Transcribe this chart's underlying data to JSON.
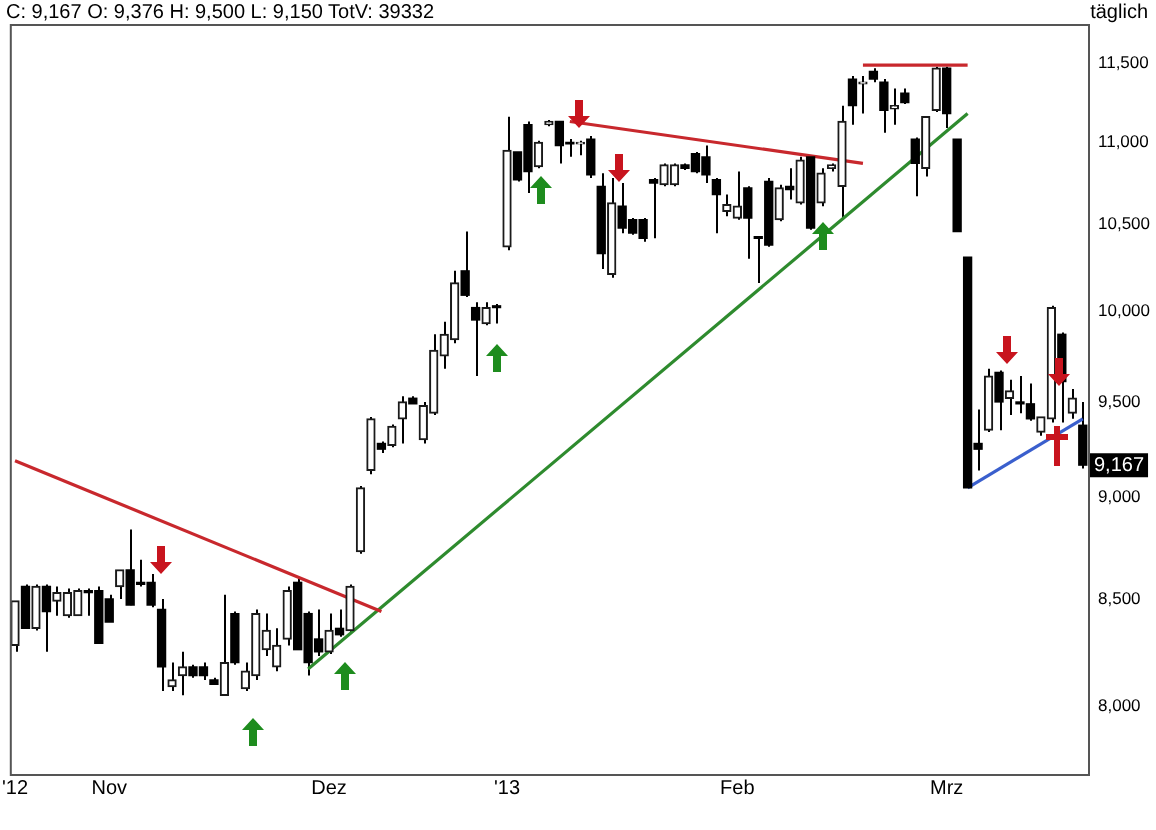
{
  "chart_data": {
    "type": "candlestick",
    "title": "C: 9,167 O: 9,376 H: 9,500 L: 9,150 TotV: 39332",
    "subtitle": "täglich",
    "categories": [
      "'12",
      null,
      null,
      null,
      null,
      null,
      null,
      null,
      null,
      "Nov",
      null,
      null,
      null,
      null,
      null,
      null,
      null,
      null,
      null,
      null,
      null,
      null,
      null,
      null,
      null,
      null,
      null,
      null,
      null,
      null,
      "Dez",
      null,
      null,
      null,
      null,
      null,
      null,
      null,
      null,
      null,
      null,
      null,
      null,
      null,
      null,
      null,
      null,
      "'13",
      null,
      null,
      null,
      null,
      null,
      null,
      null,
      null,
      null,
      null,
      null,
      null,
      null,
      null,
      null,
      null,
      null,
      null,
      null,
      null,
      null,
      "Feb",
      null,
      null,
      null,
      null,
      null,
      null,
      null,
      null,
      null,
      null,
      null,
      null,
      null,
      null,
      null,
      null,
      null,
      null,
      null,
      "Mrz",
      null,
      null,
      null,
      null,
      null,
      null,
      null,
      null,
      null,
      null,
      null,
      null,
      null
    ],
    "ohlc": [
      [
        8280,
        8490,
        8250,
        8490
      ],
      [
        8560,
        8570,
        8360,
        8360
      ],
      [
        8360,
        8570,
        8350,
        8560
      ],
      [
        8560,
        8570,
        8250,
        8440
      ],
      [
        8490,
        8560,
        8420,
        8530
      ],
      [
        8420,
        8550,
        8410,
        8530
      ],
      [
        8420,
        8550,
        8420,
        8540
      ],
      [
        8540,
        8550,
        8420,
        8530
      ],
      [
        8540,
        8560,
        8290,
        8290
      ],
      [
        8500,
        8520,
        8390,
        8390
      ],
      [
        8560,
        8640,
        8500,
        8640
      ],
      [
        8640,
        8840,
        8470,
        8470
      ],
      [
        8580,
        8690,
        8560,
        8570
      ],
      [
        8580,
        8620,
        8460,
        8470
      ],
      [
        8450,
        8500,
        8070,
        8180
      ],
      [
        8090,
        8200,
        8070,
        8120
      ],
      [
        8140,
        8250,
        8050,
        8180
      ],
      [
        8180,
        8190,
        8130,
        8140
      ],
      [
        8180,
        8200,
        8120,
        8140
      ],
      [
        8120,
        8130,
        8100,
        8100
      ],
      [
        8050,
        8520,
        8050,
        8200
      ],
      [
        8430,
        8440,
        8190,
        8200
      ],
      [
        8080,
        8200,
        8070,
        8160
      ],
      [
        8140,
        8450,
        8120,
        8430
      ],
      [
        8260,
        8430,
        8230,
        8350
      ],
      [
        8180,
        8360,
        8160,
        8280
      ],
      [
        8310,
        8560,
        8280,
        8540
      ],
      [
        8580,
        8600,
        8260,
        8260
      ],
      [
        8430,
        8440,
        8140,
        8200
      ],
      [
        8310,
        8450,
        8230,
        8250
      ],
      [
        8250,
        8430,
        8240,
        8350
      ],
      [
        8360,
        8450,
        8320,
        8330
      ],
      [
        8350,
        8570,
        8340,
        8560
      ],
      [
        8730,
        9060,
        8720,
        9050
      ],
      [
        9140,
        9420,
        9120,
        9410
      ],
      [
        9280,
        9290,
        9230,
        9250
      ],
      [
        9270,
        9380,
        9260,
        9370
      ],
      [
        9410,
        9530,
        9280,
        9500
      ],
      [
        9520,
        9530,
        9490,
        9490
      ],
      [
        9300,
        9500,
        9280,
        9480
      ],
      [
        9440,
        9870,
        9430,
        9780
      ],
      [
        9750,
        9940,
        9680,
        9870
      ],
      [
        9840,
        10230,
        9820,
        10160
      ],
      [
        10230,
        10460,
        10080,
        10090
      ],
      [
        10020,
        10050,
        9640,
        9950
      ],
      [
        9930,
        10050,
        9920,
        10020
      ],
      [
        10030,
        10040,
        9930,
        10020
      ],
      [
        10370,
        11160,
        10350,
        10950
      ],
      [
        10940,
        10940,
        10760,
        10770
      ],
      [
        11110,
        11130,
        10690,
        10820
      ],
      [
        10850,
        11010,
        10840,
        11000
      ],
      [
        11110,
        11140,
        11100,
        11130
      ],
      [
        11130,
        11130,
        10870,
        10980
      ],
      [
        11000,
        11020,
        10910,
        10990
      ],
      [
        10990,
        11010,
        10920,
        11000
      ],
      [
        11020,
        11040,
        10780,
        10800
      ],
      [
        10730,
        10810,
        10240,
        10330
      ],
      [
        10210,
        10780,
        10190,
        10630
      ],
      [
        10610,
        10750,
        10450,
        10480
      ],
      [
        10530,
        10540,
        10440,
        10450
      ],
      [
        10530,
        10540,
        10400,
        10420
      ],
      [
        10770,
        10780,
        10420,
        10750
      ],
      [
        10740,
        10870,
        10730,
        10860
      ],
      [
        10740,
        10870,
        10730,
        10860
      ],
      [
        10860,
        10870,
        10830,
        10840
      ],
      [
        10930,
        10940,
        10810,
        10820
      ],
      [
        10910,
        10980,
        10750,
        10800
      ],
      [
        10770,
        10780,
        10450,
        10680
      ],
      [
        10580,
        10680,
        10550,
        10620
      ],
      [
        10540,
        10820,
        10530,
        10610
      ],
      [
        10720,
        10730,
        10300,
        10540
      ],
      [
        10430,
        10430,
        10160,
        10420
      ],
      [
        10760,
        10780,
        10370,
        10380
      ],
      [
        10530,
        10740,
        10520,
        10720
      ],
      [
        10730,
        10840,
        10650,
        10710
      ],
      [
        10630,
        10910,
        10620,
        10890
      ],
      [
        10910,
        10920,
        10470,
        10480
      ],
      [
        10630,
        10840,
        10610,
        10810
      ],
      [
        10840,
        10870,
        10820,
        10860
      ],
      [
        10730,
        11230,
        10540,
        11130
      ],
      [
        11400,
        11420,
        11110,
        11230
      ],
      [
        11370,
        11420,
        11180,
        11380
      ],
      [
        11450,
        11470,
        11380,
        11400
      ],
      [
        11380,
        11400,
        11060,
        11200
      ],
      [
        11210,
        11340,
        11110,
        11230
      ],
      [
        11310,
        11340,
        11240,
        11250
      ],
      [
        11020,
        11030,
        10670,
        10870
      ],
      [
        10840,
        11160,
        10790,
        11160
      ],
      [
        11200,
        11480,
        11190,
        11470
      ],
      [
        11470,
        11480,
        11090,
        11180
      ],
      [
        11020,
        11020,
        10460,
        10460
      ],
      [
        10310,
        10310,
        9050,
        9050
      ],
      [
        9280,
        9460,
        9140,
        9250
      ],
      [
        9350,
        9680,
        9340,
        9640
      ],
      [
        9660,
        9670,
        9350,
        9500
      ],
      [
        9520,
        9620,
        9430,
        9560
      ],
      [
        9500,
        9640,
        9440,
        9490
      ],
      [
        9490,
        9600,
        9400,
        9410
      ],
      [
        9340,
        9420,
        9320,
        9420
      ],
      [
        9410,
        10030,
        9390,
        10020
      ],
      [
        9870,
        9880,
        9390,
        9610
      ],
      [
        9440,
        9570,
        9410,
        9520
      ],
      [
        9376,
        9500,
        9150,
        9167
      ]
    ],
    "series": [
      {
        "type": "line",
        "color": "#c8282d",
        "values": [
          9190,
          null,
          null,
          null,
          null,
          null,
          null,
          null,
          null,
          null,
          null,
          null,
          null,
          null,
          null,
          null,
          null,
          null,
          null,
          null,
          null,
          null,
          null,
          null,
          null,
          null,
          null,
          null,
          null,
          null,
          null,
          null,
          null,
          null,
          null,
          8440,
          null,
          null,
          null,
          null,
          null,
          null,
          null,
          null,
          null,
          null,
          null,
          null,
          null,
          null,
          null,
          null,
          null,
          null,
          null,
          null,
          null,
          null,
          null,
          null,
          null,
          null,
          null,
          null,
          null,
          null,
          null,
          null,
          null,
          null,
          null,
          null,
          null,
          null,
          null,
          null,
          null,
          null,
          null,
          null,
          null,
          null,
          null,
          null,
          null,
          null,
          null,
          null,
          null,
          null,
          null,
          null,
          null,
          null,
          null,
          null,
          null,
          null,
          null,
          null,
          null,
          null,
          null
        ]
      },
      {
        "type": "line",
        "color": "#2e8b2e",
        "values": [
          null,
          null,
          null,
          null,
          null,
          null,
          null,
          null,
          null,
          null,
          null,
          null,
          null,
          null,
          null,
          null,
          null,
          null,
          null,
          null,
          null,
          null,
          null,
          null,
          null,
          null,
          null,
          null,
          8170,
          null,
          null,
          null,
          null,
          null,
          null,
          null,
          null,
          null,
          null,
          null,
          null,
          null,
          null,
          null,
          null,
          null,
          null,
          null,
          null,
          null,
          null,
          null,
          null,
          null,
          null,
          null,
          null,
          null,
          null,
          null,
          null,
          null,
          null,
          null,
          null,
          null,
          null,
          null,
          null,
          null,
          null,
          null,
          null,
          null,
          null,
          null,
          null,
          null,
          null,
          null,
          null,
          null,
          null,
          null,
          null,
          null,
          null,
          null,
          null,
          null,
          null,
          11180,
          null,
          null,
          null,
          null,
          null,
          null,
          null,
          null,
          null,
          null,
          null
        ]
      },
      {
        "type": "line",
        "color": "#c8282d",
        "values": [
          null,
          null,
          null,
          null,
          null,
          null,
          null,
          null,
          null,
          null,
          null,
          null,
          null,
          null,
          null,
          null,
          null,
          null,
          null,
          null,
          null,
          null,
          null,
          null,
          null,
          null,
          null,
          null,
          null,
          null,
          null,
          null,
          null,
          null,
          null,
          null,
          null,
          null,
          null,
          null,
          null,
          null,
          null,
          null,
          null,
          null,
          null,
          null,
          null,
          null,
          null,
          null,
          null,
          11130,
          null,
          null,
          null,
          null,
          null,
          null,
          null,
          null,
          null,
          null,
          null,
          null,
          null,
          null,
          null,
          null,
          null,
          null,
          null,
          null,
          null,
          null,
          null,
          null,
          null,
          null,
          null,
          10870,
          null,
          null,
          null,
          null,
          null,
          null,
          null,
          null,
          null,
          null,
          null,
          null,
          null,
          null,
          null,
          null,
          null,
          null,
          null,
          null,
          null
        ]
      },
      {
        "type": "line",
        "color": "#c8282d",
        "values": [
          null,
          null,
          null,
          null,
          null,
          null,
          null,
          null,
          null,
          null,
          null,
          null,
          null,
          null,
          null,
          null,
          null,
          null,
          null,
          null,
          null,
          null,
          null,
          null,
          null,
          null,
          null,
          null,
          null,
          null,
          null,
          null,
          null,
          null,
          null,
          null,
          null,
          null,
          null,
          null,
          null,
          null,
          null,
          null,
          null,
          null,
          null,
          null,
          null,
          null,
          null,
          null,
          null,
          null,
          null,
          null,
          null,
          null,
          null,
          null,
          null,
          null,
          null,
          null,
          null,
          null,
          null,
          null,
          null,
          null,
          null,
          null,
          null,
          null,
          null,
          null,
          null,
          null,
          null,
          null,
          null,
          11490,
          null,
          null,
          null,
          null,
          null,
          null,
          null,
          null,
          null,
          11490,
          null,
          null,
          null,
          null,
          null,
          null,
          null,
          null,
          null,
          null,
          null
        ]
      },
      {
        "type": "line",
        "color": "#3a5fcd",
        "values": [
          null,
          null,
          null,
          null,
          null,
          null,
          null,
          null,
          null,
          null,
          null,
          null,
          null,
          null,
          null,
          null,
          null,
          null,
          null,
          null,
          null,
          null,
          null,
          null,
          null,
          null,
          null,
          null,
          null,
          null,
          null,
          null,
          null,
          null,
          null,
          null,
          null,
          null,
          null,
          null,
          null,
          null,
          null,
          null,
          null,
          null,
          null,
          null,
          null,
          null,
          null,
          null,
          null,
          null,
          null,
          null,
          null,
          null,
          null,
          null,
          null,
          null,
          null,
          null,
          null,
          null,
          null,
          null,
          null,
          null,
          null,
          null,
          null,
          null,
          null,
          null,
          null,
          null,
          null,
          null,
          null,
          null,
          null,
          null,
          null,
          null,
          null,
          null,
          null,
          null,
          null,
          9050,
          null,
          null,
          null,
          null,
          null,
          null,
          null,
          null,
          null,
          null,
          9410
        ]
      }
    ],
    "ylim": [
      7700,
      11760
    ],
    "log": true,
    "yticks": [
      {
        "value": 8000,
        "label": "8,000"
      },
      {
        "value": 8500,
        "label": "8,500"
      },
      {
        "value": 9000,
        "label": "9,000"
      },
      {
        "value": 9500,
        "label": "9,500"
      },
      {
        "value": 10000,
        "label": "10,000"
      },
      {
        "value": 10500,
        "label": "10,500"
      },
      {
        "value": 11000,
        "label": "11,000"
      },
      {
        "value": 11500,
        "label": "11,500"
      }
    ],
    "legend": false,
    "annotations": [
      {
        "text": "9,167",
        "y": 9167
      }
    ]
  }
}
